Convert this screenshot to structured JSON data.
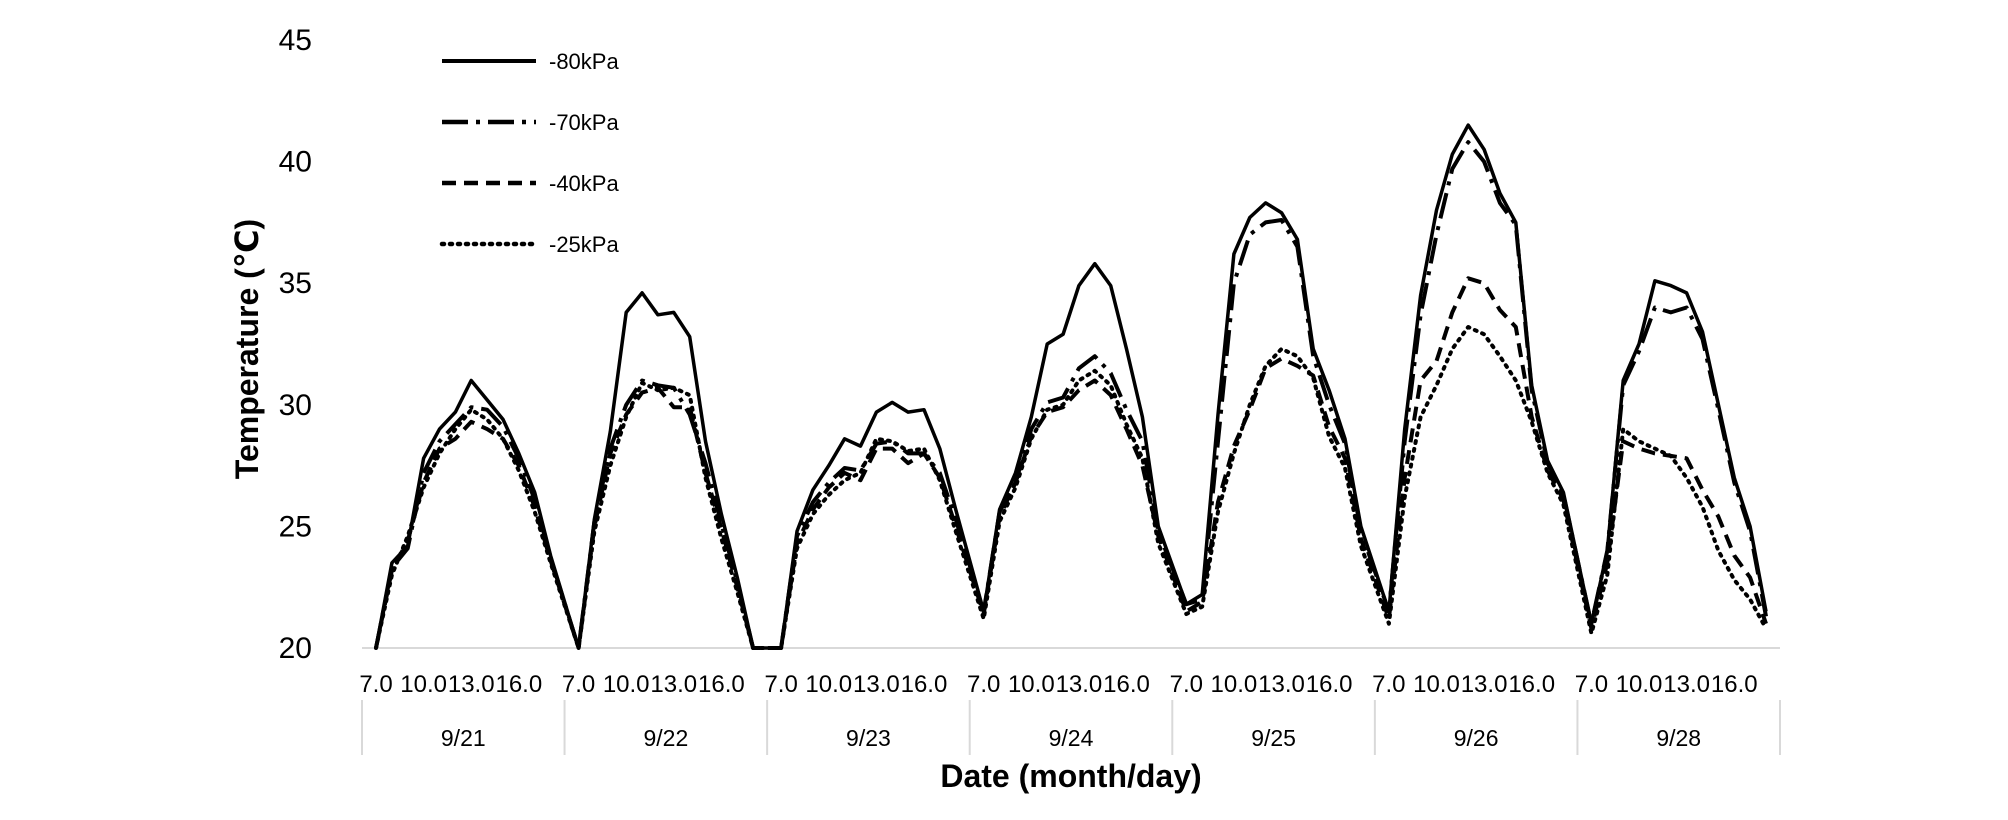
{
  "chart_data": {
    "type": "line",
    "title": "",
    "xlabel": "Date (month/day)",
    "ylabel": "Temperature (℃)",
    "ylim": [
      20,
      45
    ],
    "yticks": [
      20,
      25,
      30,
      35,
      40,
      45
    ],
    "grid": false,
    "legend_position": "top-left",
    "hour_tick_labels": [
      "7.0",
      "10.0",
      "13.0",
      "16.0"
    ],
    "days": [
      "9/21",
      "9/22",
      "9/23",
      "9/24",
      "9/25",
      "9/26",
      "9/28"
    ],
    "hours_per_day": [
      7,
      8,
      9,
      10,
      11,
      12,
      13,
      14,
      15,
      16,
      17,
      18
    ],
    "series": [
      {
        "name": "-80kPa",
        "style": "solid",
        "values": [
          [
            20.0,
            23.5,
            24.2,
            27.8,
            29.0,
            29.7,
            31.0,
            30.2,
            29.4,
            28.0,
            26.4,
            23.8
          ],
          [
            20.0,
            25.3,
            28.9,
            33.8,
            34.6,
            33.7,
            33.8,
            32.8,
            28.5,
            25.5,
            22.9,
            20.0
          ],
          [
            20.0,
            24.8,
            26.5,
            27.5,
            28.6,
            28.3,
            29.7,
            30.1,
            29.7,
            29.8,
            28.2,
            25.7
          ],
          [
            21.5,
            25.7,
            27.2,
            29.5,
            32.5,
            32.9,
            34.9,
            35.8,
            34.9,
            32.3,
            29.5,
            25.0
          ],
          [
            21.8,
            22.2,
            29.6,
            36.2,
            37.7,
            38.3,
            37.9,
            36.8,
            32.3,
            30.6,
            28.6,
            25.0
          ],
          [
            21.5,
            29.0,
            34.5,
            38.0,
            40.3,
            41.5,
            40.5,
            38.7,
            37.5,
            30.8,
            27.7,
            26.4
          ],
          [
            21.0,
            24.0,
            31.0,
            32.5,
            35.1,
            34.9,
            34.6,
            33.0,
            30.0,
            27.0,
            25.0,
            21.5
          ]
        ]
      },
      {
        "name": "-70kPa",
        "style": "dashdot",
        "values": [
          [
            20.0,
            23.3,
            24.1,
            27.2,
            28.5,
            29.2,
            29.9,
            29.8,
            29.1,
            27.8,
            26.1,
            23.7
          ],
          [
            20.0,
            25.2,
            28.2,
            30.0,
            31.0,
            30.8,
            30.7,
            29.6,
            27.6,
            25.1,
            22.7,
            20.0
          ],
          [
            20.0,
            24.6,
            26.0,
            26.8,
            27.4,
            27.3,
            28.4,
            28.5,
            28.0,
            28.0,
            27.2,
            25.3
          ],
          [
            21.5,
            25.6,
            26.8,
            29.0,
            30.1,
            30.3,
            31.5,
            32.0,
            31.3,
            29.8,
            28.5,
            24.8
          ],
          [
            21.8,
            22.0,
            28.5,
            35.0,
            37.0,
            37.5,
            37.6,
            36.5,
            32.0,
            30.0,
            28.4,
            24.8
          ],
          [
            21.5,
            28.5,
            33.7,
            37.0,
            39.7,
            40.8,
            40.0,
            38.3,
            37.4,
            30.6,
            27.6,
            26.3
          ],
          [
            21.0,
            24.0,
            30.8,
            32.2,
            34.0,
            33.8,
            34.0,
            32.7,
            29.8,
            26.8,
            24.8,
            21.3
          ]
        ]
      },
      {
        "name": "-40kPa",
        "style": "dashed",
        "values": [
          [
            20.0,
            23.2,
            24.4,
            26.8,
            28.2,
            28.6,
            29.3,
            29.0,
            28.6,
            27.5,
            25.8,
            23.6
          ],
          [
            20.0,
            25.0,
            28.0,
            29.6,
            30.5,
            30.7,
            29.9,
            29.9,
            27.2,
            24.9,
            22.5,
            20.0
          ],
          [
            20.0,
            24.3,
            25.7,
            26.6,
            27.2,
            26.9,
            28.2,
            28.2,
            27.6,
            28.0,
            27.0,
            25.0
          ],
          [
            21.4,
            25.4,
            26.8,
            28.7,
            29.7,
            29.9,
            30.6,
            31.0,
            30.4,
            29.0,
            27.5,
            24.6
          ],
          [
            21.5,
            21.9,
            26.0,
            28.3,
            29.8,
            31.5,
            31.9,
            31.6,
            31.2,
            29.1,
            27.8,
            24.5
          ],
          [
            21.2,
            27.0,
            31.0,
            31.8,
            33.8,
            35.2,
            35.0,
            33.9,
            33.2,
            29.5,
            27.3,
            26.1
          ],
          [
            20.8,
            23.5,
            28.5,
            28.2,
            28.0,
            27.9,
            27.8,
            26.5,
            25.4,
            23.8,
            22.9,
            21.0
          ]
        ]
      },
      {
        "name": "-25kPa",
        "style": "dotted",
        "values": [
          [
            20.0,
            23.0,
            24.6,
            26.6,
            28.0,
            29.0,
            29.8,
            29.4,
            28.6,
            27.3,
            25.6,
            23.5
          ],
          [
            20.0,
            24.8,
            27.5,
            29.5,
            30.9,
            30.6,
            30.7,
            30.4,
            27.0,
            24.5,
            22.3,
            20.0
          ],
          [
            20.0,
            24.1,
            25.5,
            26.3,
            26.9,
            27.2,
            28.6,
            28.5,
            28.1,
            28.2,
            26.9,
            24.8
          ],
          [
            21.2,
            25.2,
            26.6,
            28.6,
            29.8,
            30.0,
            31.0,
            31.4,
            30.8,
            29.2,
            27.8,
            24.3
          ],
          [
            21.4,
            21.7,
            25.6,
            28.0,
            30.0,
            31.6,
            32.3,
            32.0,
            31.1,
            28.7,
            27.4,
            24.2
          ],
          [
            21.0,
            26.2,
            29.5,
            30.8,
            32.3,
            33.2,
            32.9,
            32.0,
            31.0,
            29.3,
            27.2,
            25.9
          ],
          [
            20.6,
            23.0,
            29.0,
            28.5,
            28.2,
            27.9,
            27.0,
            25.8,
            24.0,
            22.8,
            22.0,
            20.8
          ]
        ]
      }
    ]
  }
}
